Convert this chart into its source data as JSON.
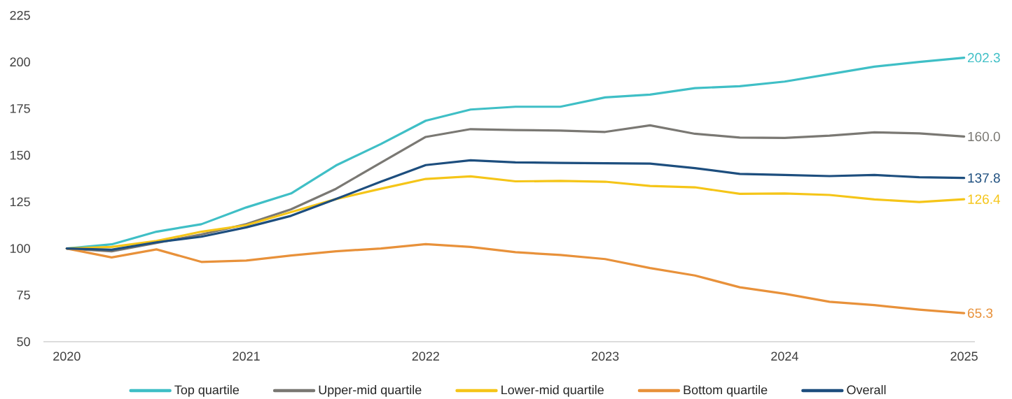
{
  "chart_data": {
    "type": "line",
    "x": [
      2020,
      2020.25,
      2020.5,
      2020.75,
      2021,
      2021.25,
      2021.5,
      2021.75,
      2022,
      2022.25,
      2022.5,
      2022.75,
      2023,
      2023.25,
      2023.5,
      2023.75,
      2024,
      2024.25,
      2024.5,
      2024.75,
      2025
    ],
    "xlim": [
      2019.87,
      2025.06
    ],
    "xticks": [
      2020,
      2021,
      2022,
      2023,
      2024,
      2025
    ],
    "ylim": [
      50,
      225
    ],
    "yticks": [
      50,
      75,
      100,
      125,
      150,
      175,
      200,
      225
    ],
    "grid": false,
    "legend": "bottom",
    "series": [
      {
        "name": "Top quartile",
        "color": "#3fbfc6",
        "values": [
          100,
          102.2,
          109,
          113,
          122,
          129.5,
          144.5,
          156,
          168.5,
          174.5,
          176,
          176,
          181,
          182.5,
          186,
          187,
          189.5,
          193.5,
          197.5,
          200,
          202.3
        ],
        "value_labels": [
          null,
          null,
          null,
          null,
          null,
          null,
          null,
          null,
          null,
          null,
          null,
          null,
          null,
          null,
          null,
          null,
          null,
          null,
          null,
          null,
          "202.3"
        ]
      },
      {
        "name": "Upper-mid quartile",
        "color": "#7a7873",
        "values": [
          100,
          98.5,
          103,
          107.5,
          113,
          121,
          132,
          146,
          159.8,
          164,
          163.5,
          163.2,
          162.5,
          166,
          161.5,
          159.5,
          159.3,
          160.5,
          162.3,
          161.7,
          160.0
        ],
        "value_labels": [
          null,
          null,
          null,
          null,
          null,
          null,
          null,
          null,
          null,
          null,
          null,
          null,
          null,
          null,
          null,
          null,
          null,
          null,
          null,
          null,
          "160.0"
        ]
      },
      {
        "name": "Lower-mid quartile",
        "color": "#f5c518",
        "values": [
          100,
          100.8,
          104,
          109,
          112.5,
          119.5,
          126.5,
          132,
          137.3,
          138.7,
          136,
          136.2,
          135.8,
          133.5,
          132.8,
          129.3,
          129.5,
          128.7,
          126.3,
          124.9,
          126.4
        ],
        "value_labels": [
          null,
          null,
          null,
          null,
          null,
          null,
          null,
          null,
          null,
          null,
          null,
          null,
          null,
          null,
          null,
          null,
          null,
          null,
          null,
          null,
          "126.4"
        ]
      },
      {
        "name": "Bottom quartile",
        "color": "#e8913a",
        "values": [
          100,
          95.2,
          99.5,
          92.8,
          93.5,
          96.2,
          98.5,
          100,
          102.3,
          100.8,
          98,
          96.5,
          94.3,
          89.5,
          85.5,
          79.2,
          75.7,
          71.4,
          69.6,
          67.2,
          65.3
        ],
        "value_labels": [
          null,
          null,
          null,
          null,
          null,
          null,
          null,
          null,
          null,
          null,
          null,
          null,
          null,
          null,
          null,
          null,
          null,
          null,
          null,
          null,
          "65.3"
        ]
      },
      {
        "name": "Overall",
        "color": "#1d4e7e",
        "values": [
          100,
          99.3,
          103.3,
          106.3,
          111.3,
          117.5,
          126.5,
          135.8,
          144.7,
          147.3,
          146.2,
          145.9,
          145.7,
          145.5,
          143.1,
          140,
          139.4,
          138.8,
          139.4,
          138.2,
          137.8
        ],
        "value_labels": [
          null,
          null,
          null,
          null,
          null,
          null,
          null,
          null,
          null,
          null,
          null,
          null,
          null,
          null,
          null,
          null,
          null,
          null,
          null,
          null,
          "137.8"
        ]
      }
    ]
  }
}
